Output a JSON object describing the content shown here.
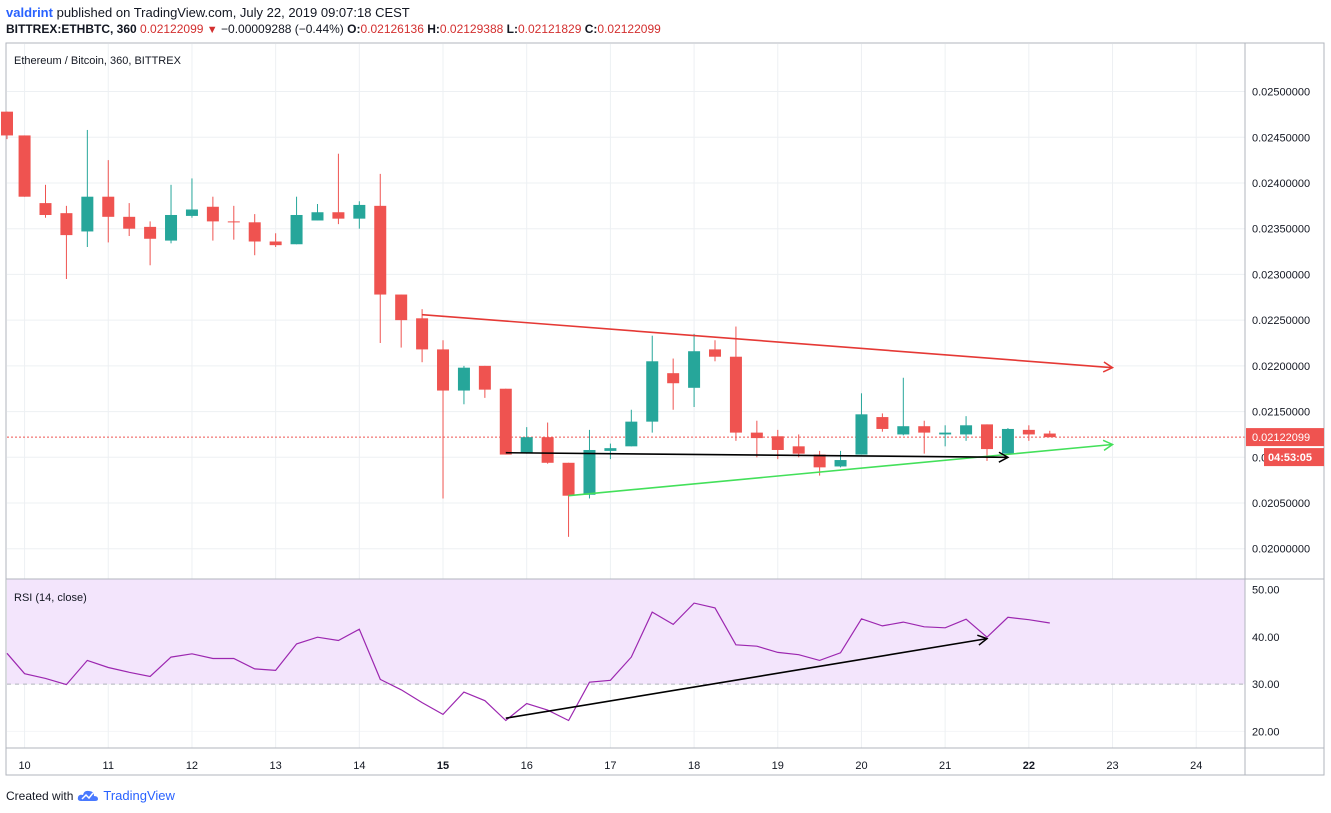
{
  "header": {
    "author": "valdrint",
    "published_text": "published on TradingView.com, July 22, 2019 09:07:18 CEST",
    "symbol": "BITTREX:ETHBTC, 360",
    "last": "0.02122099",
    "change": "−0.00009288 (−0.44%)",
    "o_label": "O:",
    "o": "0.02126136",
    "h_label": "H:",
    "h": "0.02129388",
    "l_label": "L:",
    "l": "0.02121829",
    "c_label": "C:",
    "c": "0.02122099"
  },
  "footer": {
    "created_with": "Created with",
    "brand": "TradingView"
  },
  "colors": {
    "up": "#26a69a",
    "down": "#ef5350",
    "rsi_line": "#9c27b0",
    "rsi_band": "#f3e5fc",
    "resistance": "#e53935",
    "support": "#43e05a",
    "arrow": "#000000",
    "grid": "#edf0f3"
  },
  "chart_data": [
    {
      "type": "candlestick",
      "title": "Ethereum / Bitcoin, 360, BITTREX",
      "price_axis_ticks": [
        "0.02500000",
        "0.02450000",
        "0.02400000",
        "0.02350000",
        "0.02300000",
        "0.02250000",
        "0.02200000",
        "0.02150000",
        "0.02100000",
        "0.02050000",
        "0.02000000"
      ],
      "ylim": [
        0.01968,
        0.02552
      ],
      "x_ticks": [
        {
          "label": "10",
          "x": 10
        },
        {
          "label": "11",
          "x": 11
        },
        {
          "label": "12",
          "x": 12
        },
        {
          "label": "13",
          "x": 13
        },
        {
          "label": "14",
          "x": 14
        },
        {
          "label": "15",
          "x": 15
        },
        {
          "label": "16",
          "x": 16
        },
        {
          "label": "17",
          "x": 17
        },
        {
          "label": "18",
          "x": 18
        },
        {
          "label": "19",
          "x": 19
        },
        {
          "label": "20",
          "x": 20
        },
        {
          "label": "21",
          "x": 21
        },
        {
          "label": "22",
          "x": 22
        },
        {
          "label": "23",
          "x": 23
        },
        {
          "label": "24",
          "x": 24
        }
      ],
      "xlim": [
        9.79,
        24.32
      ],
      "current_price_label": "0.02122099",
      "countdown_label": "04:53:05",
      "current_price": 0.02122099,
      "candles": [
        {
          "x": 9.79,
          "o": 0.02478,
          "h": 0.02478,
          "l": 0.02448,
          "c": 0.02452
        },
        {
          "x": 10.0,
          "o": 0.02452,
          "h": 0.02452,
          "l": 0.02385,
          "c": 0.02385
        },
        {
          "x": 10.25,
          "o": 0.02378,
          "h": 0.02398,
          "l": 0.02362,
          "c": 0.02365
        },
        {
          "x": 10.5,
          "o": 0.02367,
          "h": 0.02375,
          "l": 0.02295,
          "c": 0.02343
        },
        {
          "x": 10.75,
          "o": 0.02347,
          "h": 0.02458,
          "l": 0.0233,
          "c": 0.02385
        },
        {
          "x": 11.0,
          "o": 0.02385,
          "h": 0.02425,
          "l": 0.02335,
          "c": 0.02363
        },
        {
          "x": 11.25,
          "o": 0.02363,
          "h": 0.02378,
          "l": 0.02342,
          "c": 0.0235
        },
        {
          "x": 11.5,
          "o": 0.02352,
          "h": 0.02358,
          "l": 0.0231,
          "c": 0.02339
        },
        {
          "x": 11.75,
          "o": 0.02337,
          "h": 0.02398,
          "l": 0.02334,
          "c": 0.02365
        },
        {
          "x": 12.0,
          "o": 0.02364,
          "h": 0.02405,
          "l": 0.02362,
          "c": 0.02371
        },
        {
          "x": 12.25,
          "o": 0.02374,
          "h": 0.02385,
          "l": 0.02337,
          "c": 0.02358
        },
        {
          "x": 12.5,
          "o": 0.02358,
          "h": 0.02375,
          "l": 0.02338,
          "c": 0.02357
        },
        {
          "x": 12.75,
          "o": 0.02357,
          "h": 0.02366,
          "l": 0.02321,
          "c": 0.02336
        },
        {
          "x": 13.0,
          "o": 0.02336,
          "h": 0.02345,
          "l": 0.0233,
          "c": 0.02332
        },
        {
          "x": 13.25,
          "o": 0.02333,
          "h": 0.02385,
          "l": 0.02333,
          "c": 0.02365
        },
        {
          "x": 13.5,
          "o": 0.02359,
          "h": 0.02377,
          "l": 0.02359,
          "c": 0.02368
        },
        {
          "x": 13.75,
          "o": 0.02368,
          "h": 0.02432,
          "l": 0.02355,
          "c": 0.02361
        },
        {
          "x": 14.0,
          "o": 0.02361,
          "h": 0.0238,
          "l": 0.0235,
          "c": 0.02376
        },
        {
          "x": 14.25,
          "o": 0.02375,
          "h": 0.0241,
          "l": 0.02225,
          "c": 0.02278
        },
        {
          "x": 14.5,
          "o": 0.02278,
          "h": 0.02278,
          "l": 0.0222,
          "c": 0.0225
        },
        {
          "x": 14.75,
          "o": 0.02252,
          "h": 0.02262,
          "l": 0.02204,
          "c": 0.02218
        },
        {
          "x": 15.0,
          "o": 0.02218,
          "h": 0.02228,
          "l": 0.02055,
          "c": 0.02173
        },
        {
          "x": 15.25,
          "o": 0.02173,
          "h": 0.022,
          "l": 0.02158,
          "c": 0.02198
        },
        {
          "x": 15.5,
          "o": 0.022,
          "h": 0.022,
          "l": 0.02165,
          "c": 0.02174
        },
        {
          "x": 15.75,
          "o": 0.02175,
          "h": 0.02175,
          "l": 0.02103,
          "c": 0.02103
        },
        {
          "x": 16.0,
          "o": 0.02105,
          "h": 0.02133,
          "l": 0.02104,
          "c": 0.02122
        },
        {
          "x": 16.25,
          "o": 0.02122,
          "h": 0.02138,
          "l": 0.02093,
          "c": 0.02094
        },
        {
          "x": 16.5,
          "o": 0.02094,
          "h": 0.02094,
          "l": 0.02013,
          "c": 0.02058
        },
        {
          "x": 16.75,
          "o": 0.02059,
          "h": 0.0213,
          "l": 0.02055,
          "c": 0.02108
        },
        {
          "x": 17.0,
          "o": 0.02107,
          "h": 0.02115,
          "l": 0.02098,
          "c": 0.0211
        },
        {
          "x": 17.25,
          "o": 0.02112,
          "h": 0.02152,
          "l": 0.02112,
          "c": 0.02139
        },
        {
          "x": 17.5,
          "o": 0.02139,
          "h": 0.02233,
          "l": 0.02127,
          "c": 0.02205
        },
        {
          "x": 17.75,
          "o": 0.02192,
          "h": 0.02208,
          "l": 0.02152,
          "c": 0.02181
        },
        {
          "x": 18.0,
          "o": 0.02176,
          "h": 0.02235,
          "l": 0.02155,
          "c": 0.02216
        },
        {
          "x": 18.25,
          "o": 0.02218,
          "h": 0.02228,
          "l": 0.02205,
          "c": 0.0221
        },
        {
          "x": 18.5,
          "o": 0.0221,
          "h": 0.02243,
          "l": 0.02118,
          "c": 0.02127
        },
        {
          "x": 18.75,
          "o": 0.02127,
          "h": 0.0214,
          "l": 0.021,
          "c": 0.02121
        },
        {
          "x": 19.0,
          "o": 0.02123,
          "h": 0.0213,
          "l": 0.02098,
          "c": 0.02108
        },
        {
          "x": 19.25,
          "o": 0.02112,
          "h": 0.02125,
          "l": 0.021,
          "c": 0.02104
        },
        {
          "x": 19.5,
          "o": 0.02103,
          "h": 0.02107,
          "l": 0.0208,
          "c": 0.02089
        },
        {
          "x": 19.75,
          "o": 0.0209,
          "h": 0.02107,
          "l": 0.02089,
          "c": 0.02097
        },
        {
          "x": 20.0,
          "o": 0.02103,
          "h": 0.0217,
          "l": 0.02103,
          "c": 0.02147
        },
        {
          "x": 20.25,
          "o": 0.02144,
          "h": 0.02148,
          "l": 0.02128,
          "c": 0.02131
        },
        {
          "x": 20.5,
          "o": 0.02125,
          "h": 0.02187,
          "l": 0.02124,
          "c": 0.02134
        },
        {
          "x": 20.75,
          "o": 0.02134,
          "h": 0.0214,
          "l": 0.02104,
          "c": 0.02127
        },
        {
          "x": 21.0,
          "o": 0.02125,
          "h": 0.02135,
          "l": 0.02112,
          "c": 0.02127
        },
        {
          "x": 21.25,
          "o": 0.02125,
          "h": 0.02145,
          "l": 0.02118,
          "c": 0.02135
        },
        {
          "x": 21.5,
          "o": 0.02136,
          "h": 0.02136,
          "l": 0.02096,
          "c": 0.02109
        },
        {
          "x": 21.75,
          "o": 0.02104,
          "h": 0.02132,
          "l": 0.02104,
          "c": 0.02131
        },
        {
          "x": 22.0,
          "o": 0.0213,
          "h": 0.02135,
          "l": 0.02118,
          "c": 0.02125
        },
        {
          "x": 22.25,
          "o": 0.02126,
          "h": 0.02129,
          "l": 0.02122,
          "c": 0.02122
        }
      ],
      "drawings": [
        {
          "name": "resistance-trendline",
          "color": "#e53935",
          "from": {
            "x": 14.75,
            "y": 0.02256
          },
          "to": {
            "x": 23.0,
            "y": 0.02198
          }
        },
        {
          "name": "support-trendline",
          "color": "#43e05a",
          "from": {
            "x": 16.5,
            "y": 0.02058
          },
          "to": {
            "x": 23.0,
            "y": 0.02114
          }
        },
        {
          "name": "price-horizontal-arrow",
          "color": "#000000",
          "from": {
            "x": 15.75,
            "y": 0.02105
          },
          "to": {
            "x": 21.75,
            "y": 0.021
          }
        }
      ]
    },
    {
      "type": "line",
      "title": "RSI (14, close)",
      "axis_ticks": [
        "50.00",
        "40.00",
        "30.00",
        "20.00"
      ],
      "ylim": [
        16.5,
        52.2
      ],
      "band": [
        30,
        52.2
      ],
      "band_dash_level": 30,
      "series": [
        {
          "x": [
            9.79,
            10.0,
            10.25,
            10.5,
            10.75,
            11.0,
            11.25,
            11.5,
            11.75,
            12.0,
            12.25,
            12.5,
            12.75,
            13.0,
            13.25,
            13.5,
            13.75,
            14.0,
            14.25,
            14.5,
            14.75,
            15.0,
            15.25,
            15.5,
            15.75,
            16.0,
            16.25,
            16.5,
            16.75,
            17.0,
            17.25,
            17.5,
            17.75,
            18.0,
            18.25,
            18.5,
            18.75,
            19.0,
            19.25,
            19.5,
            19.75,
            20.0,
            20.25,
            20.5,
            20.75,
            21.0,
            21.25,
            21.5,
            21.75,
            22.0,
            22.25
          ],
          "values": [
            36.5,
            32.2,
            31.2,
            29.9,
            35.0,
            33.5,
            32.5,
            31.6,
            35.7,
            36.4,
            35.4,
            35.4,
            33.2,
            32.9,
            38.5,
            39.9,
            39.2,
            41.6,
            31.0,
            28.8,
            26.1,
            23.6,
            28.3,
            26.5,
            22.3,
            25.9,
            24.5,
            22.3,
            30.4,
            30.8,
            35.7,
            45.2,
            42.6,
            47.1,
            46.1,
            38.3,
            38.0,
            36.7,
            36.2,
            35.0,
            36.6,
            43.8,
            42.3,
            43.1,
            42.1,
            41.9,
            43.7,
            39.9,
            44.1,
            43.6,
            42.9
          ]
        }
      ],
      "drawings": [
        {
          "name": "rsi-divergence-arrow",
          "color": "#000000",
          "from": {
            "x": 15.75,
            "y": 22.8
          },
          "to": {
            "x": 21.5,
            "y": 39.6
          }
        }
      ]
    }
  ]
}
